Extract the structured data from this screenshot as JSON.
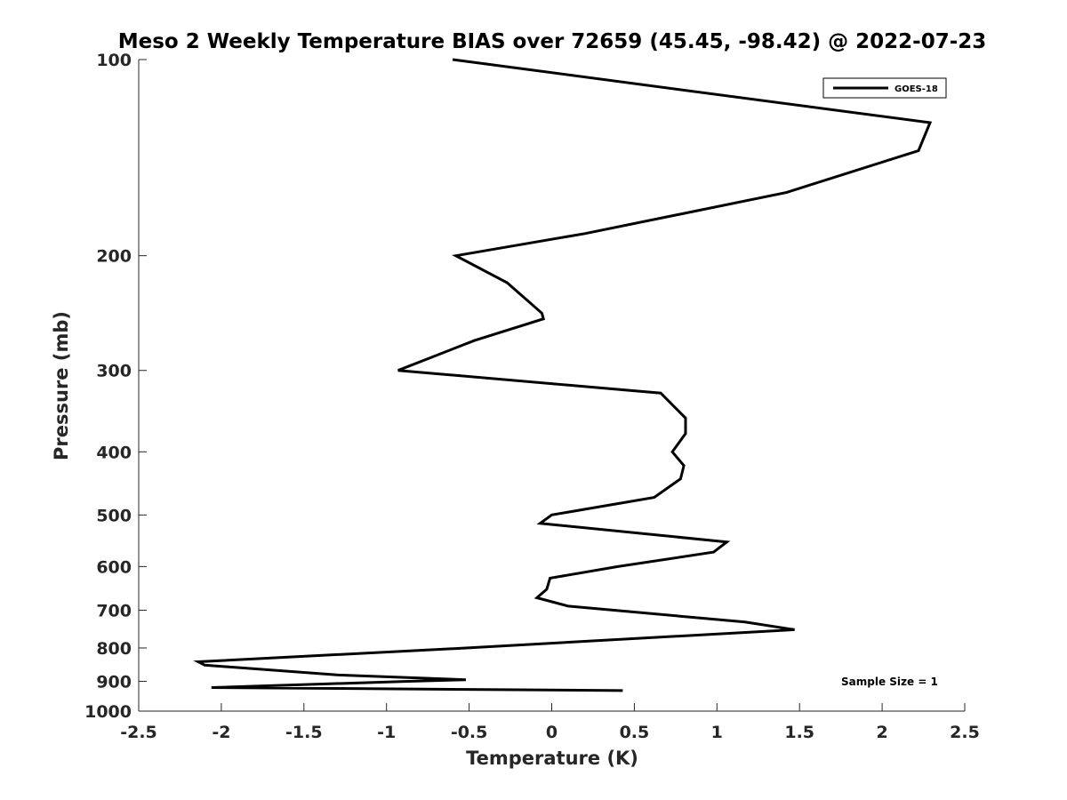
{
  "chart_data": {
    "type": "line",
    "title": "Meso 2 Weekly Temperature BIAS over 72659 (45.45, -98.42) @ 2022-07-23",
    "xlabel": "Temperature (K)",
    "ylabel": "Pressure (mb)",
    "xlim": [
      -2.5,
      2.5
    ],
    "ylim": [
      100,
      1000
    ],
    "y_scale": "log",
    "y_reversed": true,
    "x_ticks": [
      -2.5,
      -2,
      -1.5,
      -1,
      -0.5,
      0,
      0.5,
      1,
      1.5,
      2,
      2.5
    ],
    "x_tick_labels": [
      "-2.5",
      "-2",
      "-1.5",
      "-1",
      "-0.5",
      "0",
      "0.5",
      "1",
      "1.5",
      "2",
      "2.5"
    ],
    "y_ticks": [
      100,
      200,
      300,
      400,
      500,
      600,
      700,
      800,
      900,
      1000
    ],
    "y_tick_labels": [
      "100",
      "200",
      "300",
      "400",
      "500",
      "600",
      "700",
      "800",
      "900",
      "1000"
    ],
    "grid": false,
    "legend_position": "top-right",
    "annotation": "Sample Size = 1",
    "series": [
      {
        "name": "GOES-18",
        "color": "#000000",
        "x": [
          -0.6,
          2.29,
          2.22,
          1.42,
          0.2,
          -0.58,
          -0.27,
          -0.06,
          -0.05,
          -0.47,
          -0.93,
          0.66,
          0.81,
          0.81,
          0.73,
          0.8,
          0.78,
          0.62,
          0.0,
          -0.07,
          1.06,
          0.98,
          0.4,
          -0.01,
          -0.03,
          -0.09,
          0.1,
          1.17,
          1.47,
          -0.52,
          -2.14,
          -2.1,
          -1.3,
          -0.52,
          -0.87,
          -2.06,
          0.43
        ],
        "y": [
          100,
          125,
          138,
          160,
          185,
          200,
          220,
          245,
          250,
          270,
          300,
          325,
          355,
          375,
          400,
          420,
          440,
          470,
          500,
          515,
          550,
          570,
          600,
          625,
          650,
          670,
          690,
          730,
          750,
          800,
          840,
          850,
          880,
          895,
          900,
          920,
          930
        ]
      }
    ]
  }
}
